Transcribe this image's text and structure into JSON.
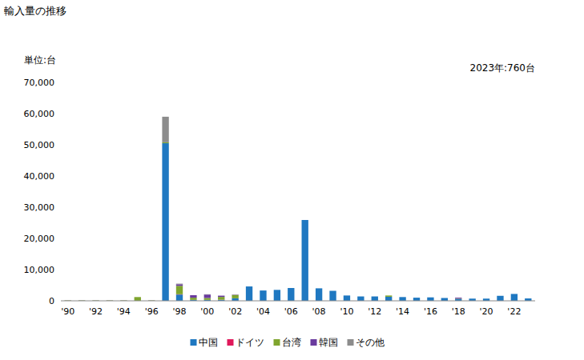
{
  "chart_data": {
    "type": "bar",
    "title": "輸入量の推移",
    "y_label": "単位:台",
    "annotation": "2023年:760台",
    "stacked": true,
    "grid": false,
    "legend": "bottom",
    "categories": [
      "'90",
      null,
      "'92",
      null,
      "'94",
      null,
      "'96",
      null,
      "'98",
      null,
      "'00",
      null,
      "'02",
      null,
      "'04",
      null,
      "'06",
      null,
      "'08",
      null,
      "'10",
      null,
      "'12",
      null,
      "'14",
      null,
      "'16",
      null,
      "'18",
      null,
      "'20",
      null,
      "'22",
      null
    ],
    "ylim": [
      0,
      70000
    ],
    "yticks": [
      0,
      {
        "value": 10000,
        "label": "10,000"
      },
      {
        "value": 20000,
        "label": "20,000"
      },
      {
        "value": 30000,
        "label": "30,000"
      },
      {
        "value": 40000,
        "label": "40,000"
      },
      {
        "value": 50000,
        "label": "50,000"
      },
      {
        "value": 60000,
        "label": "60,000"
      },
      {
        "value": 70000,
        "label": "70,000"
      }
    ],
    "series": [
      {
        "name": "中国",
        "color": "#1f78c1",
        "values": [
          0,
          0,
          0,
          0,
          0,
          0,
          0,
          50500,
          2000,
          300,
          300,
          300,
          800,
          4600,
          3300,
          3500,
          4100,
          25900,
          4000,
          3200,
          1700,
          1400,
          1400,
          1300,
          1200,
          1000,
          1100,
          900,
          600,
          700,
          700,
          1600,
          2200,
          760
        ]
      },
      {
        "name": "ドイツ",
        "color": "#e0195b",
        "values": [
          0,
          0,
          0,
          0,
          0,
          0,
          0,
          0,
          100,
          0,
          0,
          50,
          0,
          0,
          0,
          0,
          0,
          0,
          0,
          0,
          0,
          0,
          0,
          0,
          0,
          0,
          0,
          0,
          0,
          0,
          0,
          0,
          0,
          0
        ]
      },
      {
        "name": "台湾",
        "color": "#7fa52e",
        "values": [
          100,
          100,
          100,
          100,
          100,
          1200,
          100,
          300,
          2700,
          700,
          600,
          900,
          1100,
          0,
          0,
          0,
          0,
          0,
          0,
          0,
          0,
          0,
          0,
          400,
          0,
          0,
          0,
          0,
          100,
          0,
          0,
          0,
          0,
          0
        ]
      },
      {
        "name": "韓国",
        "color": "#6a3b9e",
        "values": [
          0,
          0,
          0,
          0,
          0,
          0,
          0,
          0,
          500,
          800,
          1100,
          400,
          100,
          0,
          0,
          0,
          0,
          0,
          0,
          0,
          0,
          0,
          0,
          0,
          0,
          0,
          0,
          0,
          300,
          0,
          0,
          0,
          0,
          0
        ]
      },
      {
        "name": "その他",
        "color": "#8c8c8c",
        "values": [
          100,
          100,
          100,
          100,
          100,
          0,
          100,
          8200,
          200,
          0,
          100,
          0,
          0,
          0,
          0,
          0,
          0,
          0,
          0,
          0,
          0,
          0,
          0,
          0,
          0,
          0,
          0,
          0,
          0,
          0,
          0,
          0,
          0,
          0
        ]
      }
    ]
  }
}
